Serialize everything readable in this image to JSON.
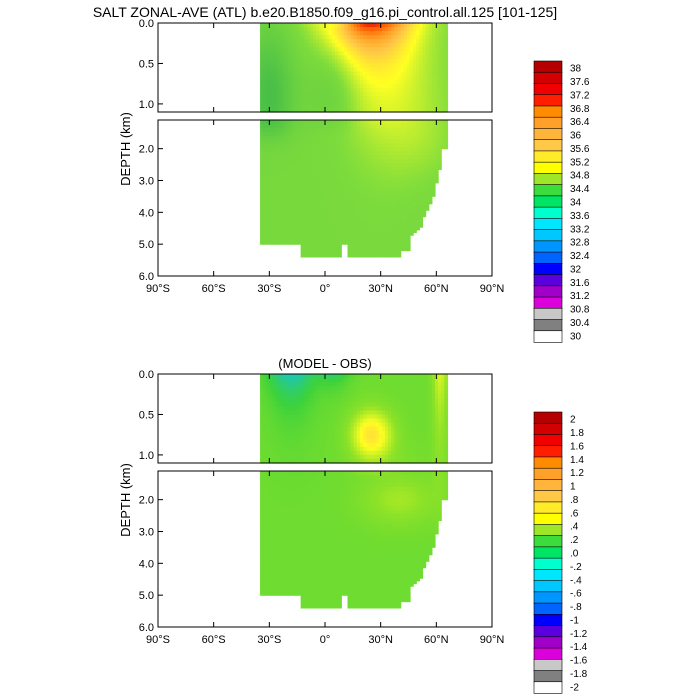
{
  "chart_data": [
    {
      "type": "heatmap",
      "title": "SALT ZONAL-AVE (ATL) b.e20.B1850.f09_g16.pi_control.all.125 [101-125]",
      "ylabel": "DEPTH (km)",
      "xlabel": "",
      "xlim": [
        -90,
        90
      ],
      "ylim": [
        6.0,
        0.0
      ],
      "upper_panel_depth_range": [
        0.0,
        1.1
      ],
      "lower_panel_depth_range": [
        1.1,
        6.0
      ],
      "x_tick_labels": [
        "90°S",
        "60°S",
        "30°S",
        "0°",
        "30°N",
        "60°N",
        "90°N"
      ],
      "upper_y_tick_labels": [
        "0.0",
        "0.5",
        "1.0"
      ],
      "lower_y_tick_labels": [
        "2.0",
        "3.0",
        "4.0",
        "5.0",
        "6.0"
      ],
      "colorbar_labels": [
        "38",
        "37.6",
        "37.2",
        "36.8",
        "36.4",
        "36",
        "35.6",
        "35.2",
        "34.8",
        "34.4",
        "34",
        "33.6",
        "33.2",
        "32.8",
        "32.4",
        "32",
        "31.6",
        "31.2",
        "30.8",
        "30.4",
        "30"
      ],
      "colorbar_colors": [
        "#b40000",
        "#d20000",
        "#f00000",
        "#ff1e00",
        "#ff8c00",
        "#ffa028",
        "#ffb43c",
        "#ffc846",
        "#ffeb28",
        "#ffff00",
        "#a0e628",
        "#3cdc3c",
        "#00e664",
        "#00ffcc",
        "#00e6ff",
        "#00c8ff",
        "#0096ff",
        "#0064ff",
        "#0000ff",
        "#5a00dc",
        "#a000c8",
        "#dc00dc",
        "#c8c8c8",
        "#808080",
        "#ffffff"
      ],
      "field_summary": {
        "domain_latitude": [
          -35,
          66
        ],
        "surface_max_near_lat": 25,
        "surface_max_value_approx": 37.2,
        "deep_value_approx": 34.9,
        "southern_intermediate_min_approx": 34.4
      }
    },
    {
      "type": "heatmap",
      "title": "(MODEL - OBS)",
      "ylabel": "DEPTH (km)",
      "xlabel": "",
      "xlim": [
        -90,
        90
      ],
      "ylim": [
        6.0,
        0.0
      ],
      "upper_panel_depth_range": [
        0.0,
        1.1
      ],
      "lower_panel_depth_range": [
        1.1,
        6.0
      ],
      "x_tick_labels": [
        "90°S",
        "60°S",
        "30°S",
        "0°",
        "30°N",
        "60°N",
        "90°N"
      ],
      "upper_y_tick_labels": [
        "0.0",
        "0.5",
        "1.0"
      ],
      "lower_y_tick_labels": [
        "2.0",
        "3.0",
        "4.0",
        "5.0",
        "6.0"
      ],
      "colorbar_labels": [
        "2",
        "1.8",
        "1.6",
        "1.4",
        "1.2",
        "1",
        ".8",
        ".6",
        ".4",
        ".2",
        ".0",
        "-.2",
        "-.4",
        "-.6",
        "-.8",
        "-1",
        "-1.2",
        "-1.4",
        "-1.6",
        "-1.8",
        "-2"
      ],
      "colorbar_colors": [
        "#b40000",
        "#d20000",
        "#f00000",
        "#ff1e00",
        "#ff8c00",
        "#ffa028",
        "#ffb43c",
        "#ffc846",
        "#ffeb28",
        "#ffff00",
        "#a0e628",
        "#3cdc3c",
        "#00e664",
        "#00ffcc",
        "#00e6ff",
        "#00c8ff",
        "#0096ff",
        "#0064ff",
        "#0000ff",
        "#5a00dc",
        "#a000c8",
        "#dc00dc",
        "#c8c8c8",
        "#808080",
        "#ffffff"
      ],
      "field_summary": {
        "domain_latitude": [
          -35,
          66
        ],
        "typical_bias_approx": 0.2,
        "positive_bias_region": "upper 1 km, 15°N–35°N, about 0.6",
        "negative_bias_region": "upper 0.5 km near 30°S–0°, about -0.4"
      }
    }
  ]
}
